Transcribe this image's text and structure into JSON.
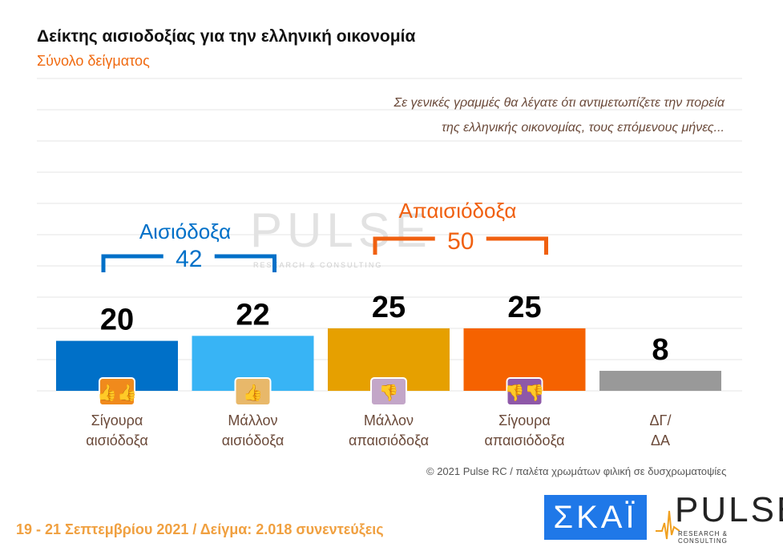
{
  "title": "Δείκτης αισιοδοξίας για την ελληνική οικονομία",
  "subtitle": "Σύνολο δείγματος",
  "question": [
    "Σε γενικές γραμμές θα λέγατε ότι αντιμετωπίζετε την πορεία",
    "της ελληνικής οικονομίας, τους επόμενους μήνες..."
  ],
  "copyright": "© 2021 Pulse RC   /   παλέτα χρωμάτων φιλική σε δυσχρωματοψίες",
  "footer": "19 - 21 Σεπτεμβρίου 2021  /  Δείγμα:  2.018 συνεντεύξεις",
  "logos": {
    "skai": "ΣΚΑΪ",
    "pulse": "PULSE",
    "pulse_sub": "RESEARCH & CONSULTING",
    "watermark": "PULSE"
  },
  "chart_data": {
    "type": "bar",
    "categories": [
      [
        "Σίγουρα",
        "αισιόδοξα"
      ],
      [
        "Μάλλον",
        "αισιόδοξα"
      ],
      [
        "Μάλλον",
        "απαισιόδοξα"
      ],
      [
        "Σίγουρα",
        "απαισιόδοξα"
      ],
      [
        "ΔΓ/",
        "ΔΑ"
      ]
    ],
    "values": [
      20,
      22,
      25,
      25,
      8
    ],
    "colors": [
      "#0070c8",
      "#38b4f5",
      "#e6a000",
      "#f56200",
      "#999999"
    ],
    "icons": [
      "two-thumbs-up-icon",
      "thumb-up-icon",
      "thumb-down-icon",
      "two-thumbs-down-icon",
      null
    ],
    "icon_colors": [
      "#f08a1c",
      "#e8b86a",
      "#c3a6c8",
      "#8e58a8"
    ],
    "groups": [
      {
        "label": "Αισιόδοξα",
        "total": 42,
        "color": "#0070c8"
      },
      {
        "label": "Απαισιόδοξα",
        "total": 50,
        "color": "#f06010"
      }
    ],
    "grid": true
  }
}
